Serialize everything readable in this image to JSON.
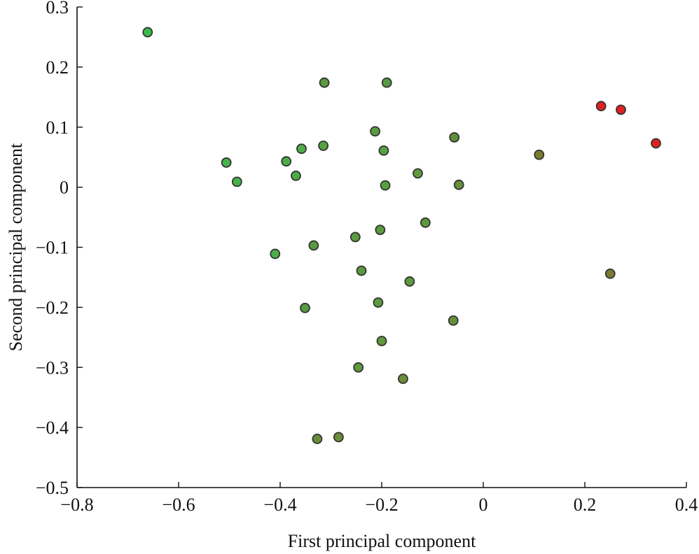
{
  "chart_data": {
    "type": "scatter",
    "title": "",
    "xlabel": "First principal component",
    "ylabel": "Second principal component",
    "xlim": [
      -0.8,
      0.4
    ],
    "ylim": [
      -0.5,
      0.3
    ],
    "xticks": [
      -0.8,
      -0.6,
      -0.4,
      -0.2,
      0,
      0.2,
      0.4
    ],
    "yticks": [
      -0.5,
      -0.4,
      -0.3,
      -0.2,
      -0.1,
      0,
      0.1,
      0.2,
      0.3
    ],
    "xtick_labels": [
      "−0.8",
      "−0.6",
      "−0.4",
      "−0.2",
      "0",
      "0.2",
      "0.4"
    ],
    "ytick_labels": [
      "−0.5",
      "−0.4",
      "−0.3",
      "−0.2",
      "−0.1",
      "0",
      "0.1",
      "0.2",
      "0.3"
    ],
    "grid": false,
    "legend": "none",
    "points": [
      {
        "x": -0.661,
        "y": 0.258,
        "color": "#3dba4a"
      },
      {
        "x": -0.313,
        "y": 0.174,
        "color": "#5a9a40"
      },
      {
        "x": -0.19,
        "y": 0.174,
        "color": "#5a9a40"
      },
      {
        "x": 0.232,
        "y": 0.135,
        "color": "#e02020"
      },
      {
        "x": 0.271,
        "y": 0.129,
        "color": "#e02020"
      },
      {
        "x": -0.213,
        "y": 0.093,
        "color": "#5a9a40"
      },
      {
        "x": -0.057,
        "y": 0.083,
        "color": "#5f9038"
      },
      {
        "x": 0.34,
        "y": 0.073,
        "color": "#e02020"
      },
      {
        "x": -0.315,
        "y": 0.069,
        "color": "#56a242"
      },
      {
        "x": -0.358,
        "y": 0.064,
        "color": "#4fae46"
      },
      {
        "x": -0.196,
        "y": 0.061,
        "color": "#56a242"
      },
      {
        "x": 0.11,
        "y": 0.054,
        "color": "#7b7a30"
      },
      {
        "x": -0.506,
        "y": 0.041,
        "color": "#45b248"
      },
      {
        "x": -0.388,
        "y": 0.043,
        "color": "#4aae46"
      },
      {
        "x": -0.129,
        "y": 0.023,
        "color": "#5f9a3c"
      },
      {
        "x": -0.369,
        "y": 0.019,
        "color": "#4aae46"
      },
      {
        "x": -0.485,
        "y": 0.009,
        "color": "#45b248"
      },
      {
        "x": -0.193,
        "y": 0.003,
        "color": "#56a242"
      },
      {
        "x": -0.048,
        "y": 0.004,
        "color": "#66903a"
      },
      {
        "x": -0.114,
        "y": -0.059,
        "color": "#5f9a3c"
      },
      {
        "x": -0.203,
        "y": -0.071,
        "color": "#5a9a40"
      },
      {
        "x": -0.252,
        "y": -0.083,
        "color": "#5a9a40"
      },
      {
        "x": -0.334,
        "y": -0.097,
        "color": "#589a40"
      },
      {
        "x": -0.41,
        "y": -0.111,
        "color": "#4aae46"
      },
      {
        "x": -0.24,
        "y": -0.139,
        "color": "#5a9a40"
      },
      {
        "x": -0.145,
        "y": -0.157,
        "color": "#5f9a3c"
      },
      {
        "x": 0.25,
        "y": -0.144,
        "color": "#7b7a30"
      },
      {
        "x": -0.207,
        "y": -0.192,
        "color": "#5a9a40"
      },
      {
        "x": -0.351,
        "y": -0.201,
        "color": "#589a40"
      },
      {
        "x": -0.059,
        "y": -0.222,
        "color": "#66903a"
      },
      {
        "x": -0.2,
        "y": -0.256,
        "color": "#5f9a3c"
      },
      {
        "x": -0.246,
        "y": -0.3,
        "color": "#5f9a3c"
      },
      {
        "x": -0.158,
        "y": -0.319,
        "color": "#6a8e38"
      },
      {
        "x": -0.327,
        "y": -0.419,
        "color": "#6a8e38"
      },
      {
        "x": -0.285,
        "y": -0.416,
        "color": "#6a8e38"
      }
    ]
  }
}
